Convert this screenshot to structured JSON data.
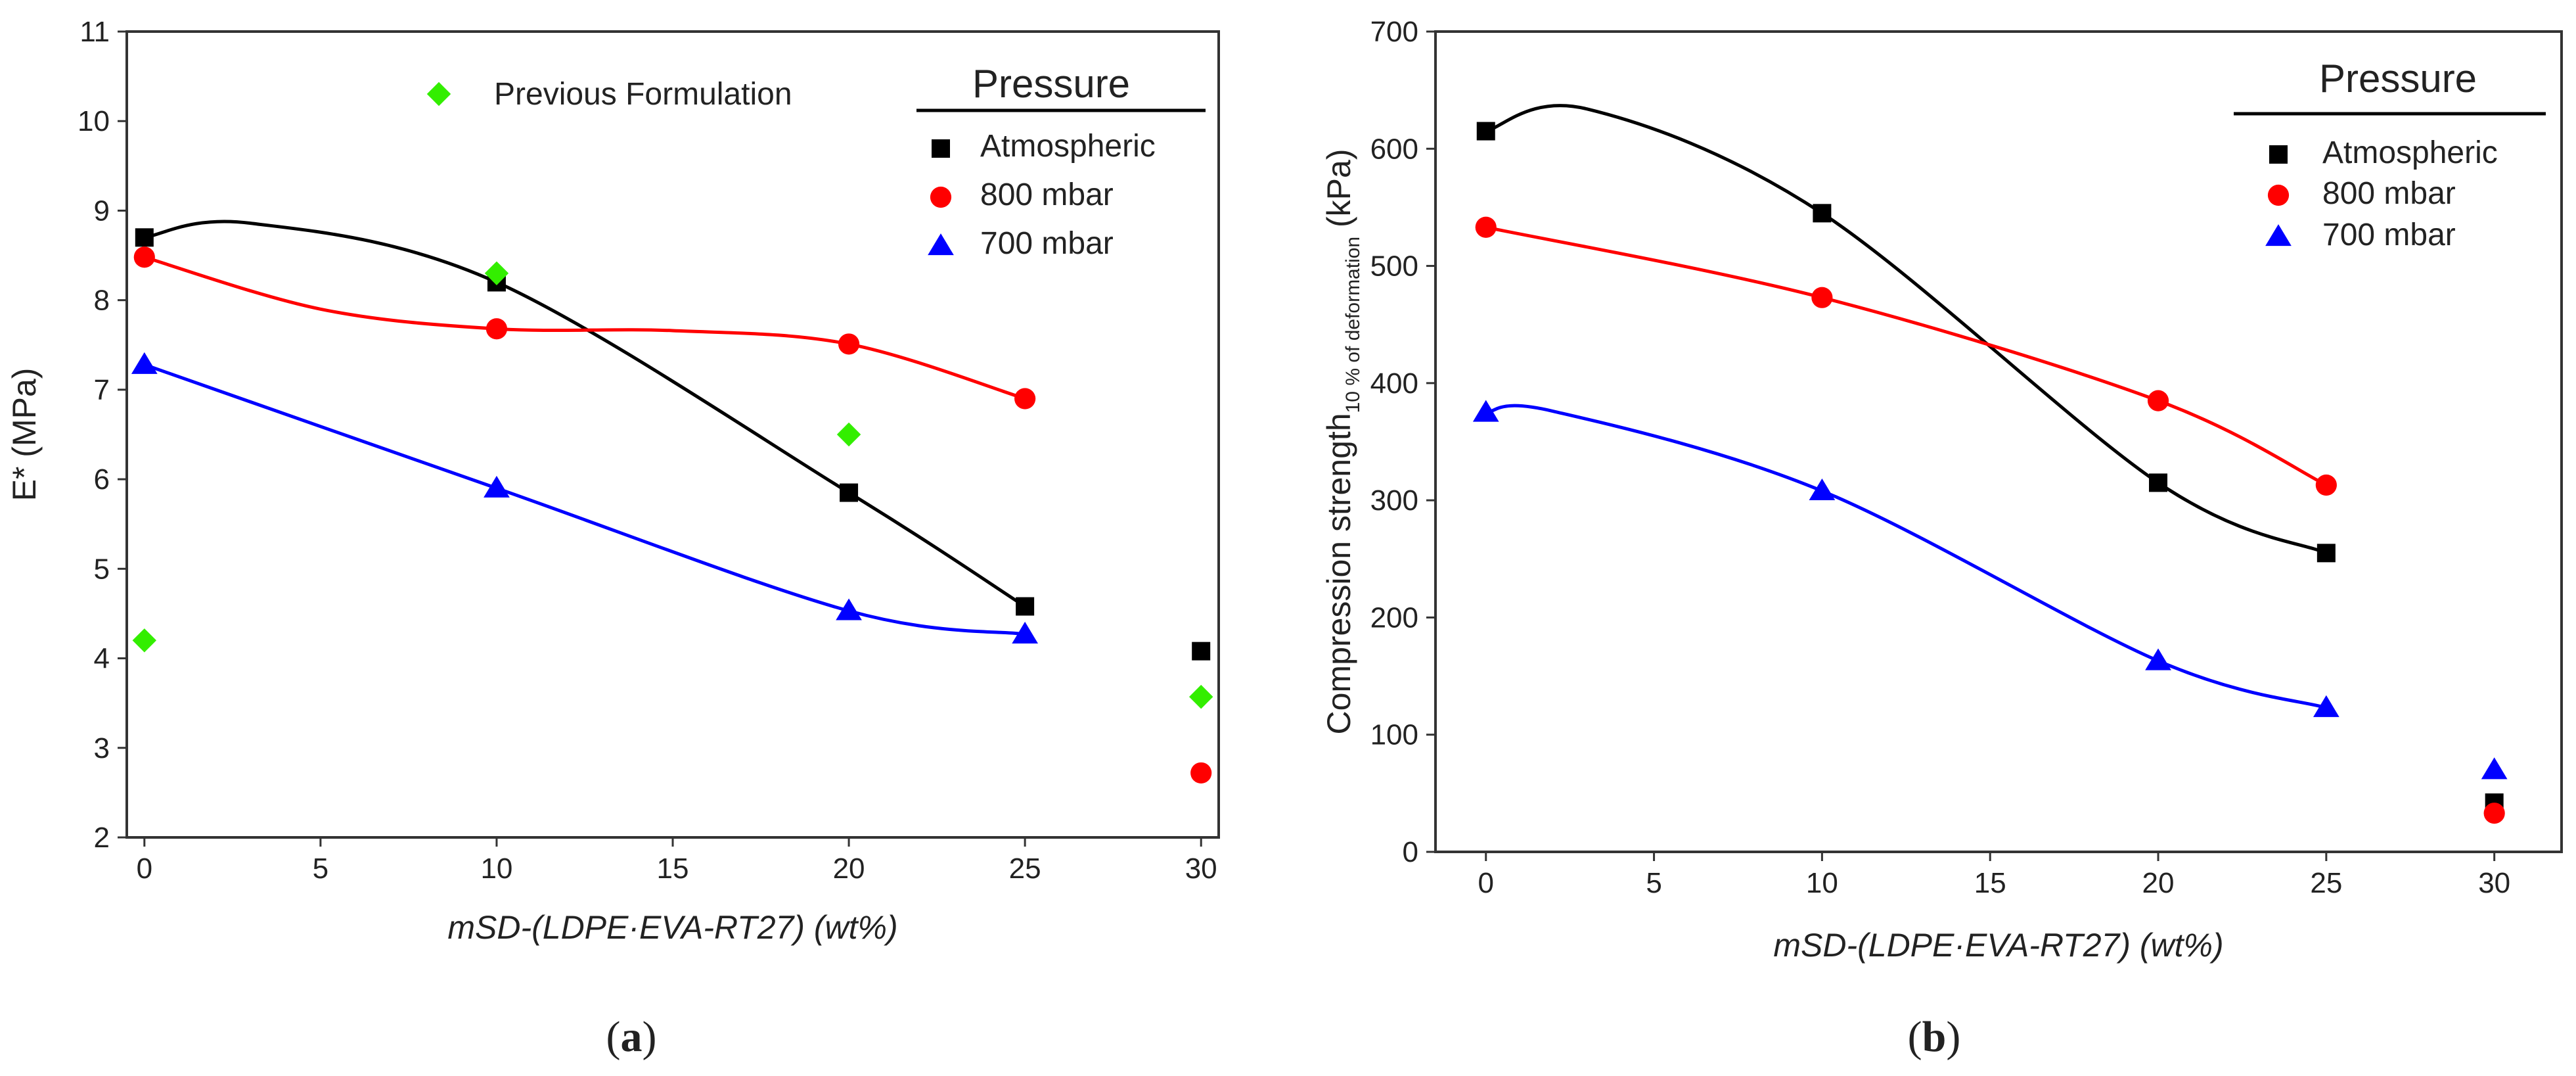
{
  "chart_data": [
    {
      "type": "scatter",
      "panel_label": {
        "open": "(",
        "letter": "a",
        "close": ")"
      },
      "title": "",
      "xlabel": "mSD-(LDPE·EVA-RT27) (wt%)",
      "ylabel": "E* (MPa)",
      "xlim": [
        -0.5,
        30.5
      ],
      "ylim": [
        2,
        11
      ],
      "xticks": [
        0,
        5,
        10,
        15,
        20,
        25,
        30
      ],
      "xtick_labels": [
        "0",
        "5",
        "10",
        "15",
        "20",
        "25",
        "30"
      ],
      "yticks": [
        2,
        3,
        4,
        5,
        6,
        7,
        8,
        9,
        10,
        11
      ],
      "ytick_labels": [
        "2",
        "3",
        "4",
        "5",
        "6",
        "7",
        "8",
        "9",
        "10",
        "11"
      ],
      "legend": {
        "title": "Pressure",
        "entries": [
          "Atmospheric",
          "800 mbar",
          "700 mbar"
        ],
        "extra_entry": "Previous Formulation"
      },
      "series": [
        {
          "name": "Atmospheric",
          "marker": "square",
          "color": "#000000",
          "x": [
            0,
            10,
            20,
            25,
            30
          ],
          "y": [
            8.7,
            8.2,
            5.85,
            4.58,
            4.08
          ],
          "fit": {
            "x": [
              0,
              3,
              10,
              20,
              25
            ],
            "y": [
              8.7,
              8.86,
              8.2,
              5.85,
              4.58
            ]
          }
        },
        {
          "name": "800 mbar",
          "marker": "circle",
          "color": "#ff0000",
          "x": [
            0,
            10,
            20,
            25,
            30
          ],
          "y": [
            8.48,
            7.68,
            7.51,
            6.9,
            2.72
          ],
          "fit": {
            "x": [
              0,
              5,
              10,
              15,
              20,
              25
            ],
            "y": [
              8.48,
              7.9,
              7.68,
              7.66,
              7.51,
              6.9
            ]
          }
        },
        {
          "name": "700 mbar",
          "marker": "triangle",
          "color": "#0000ff",
          "x": [
            0,
            10,
            20,
            25
          ],
          "y": [
            7.28,
            5.9,
            4.53,
            4.27
          ],
          "fit": {
            "x": [
              0,
              10,
              20,
              25
            ],
            "y": [
              7.28,
              5.9,
              4.53,
              4.27
            ]
          }
        },
        {
          "name": "Previous Formulation",
          "marker": "diamond",
          "color": "#33ee00",
          "x": [
            0,
            10,
            20,
            30
          ],
          "y": [
            4.2,
            8.3,
            6.5,
            3.57
          ]
        }
      ]
    },
    {
      "type": "scatter",
      "panel_label": {
        "open": "(",
        "letter": "b",
        "close": ")"
      },
      "title": "",
      "xlabel": "mSD-(LDPE·EVA-RT27) (wt%)",
      "ylabel_main": "Compression strength",
      "ylabel_sub": "10 % of deformation",
      "ylabel_unit": " (kPa)",
      "xlim": [
        -1.5,
        32
      ],
      "ylim": [
        0,
        700
      ],
      "xticks": [
        0,
        5,
        10,
        15,
        20,
        25,
        30
      ],
      "xtick_labels": [
        "0",
        "5",
        "10",
        "15",
        "20",
        "25",
        "30"
      ],
      "yticks": [
        0,
        100,
        200,
        300,
        400,
        500,
        600,
        700
      ],
      "ytick_labels": [
        "0",
        "100",
        "200",
        "300",
        "400",
        "500",
        "600",
        "700"
      ],
      "legend": {
        "title": "Pressure",
        "entries": [
          "Atmospheric",
          "800 mbar",
          "700 mbar"
        ]
      },
      "series": [
        {
          "name": "Atmospheric",
          "marker": "square",
          "color": "#000000",
          "x": [
            0,
            10,
            20,
            25,
            30
          ],
          "y": [
            615,
            545,
            315,
            255,
            42
          ],
          "fit": {
            "x": [
              0,
              3,
              10,
              20,
              25
            ],
            "y": [
              615,
              634,
              545,
              315,
              255
            ]
          }
        },
        {
          "name": "800 mbar",
          "marker": "circle",
          "color": "#ff0000",
          "x": [
            0,
            10,
            20,
            25,
            30
          ],
          "y": [
            533,
            473,
            385,
            313,
            33
          ],
          "fit": {
            "x": [
              0,
              10,
              20,
              25
            ],
            "y": [
              533,
              473,
              385,
              313
            ]
          }
        },
        {
          "name": "700 mbar",
          "marker": "triangle",
          "color": "#0000ff",
          "x": [
            0,
            10,
            20,
            25,
            30
          ],
          "y": [
            375,
            308,
            163,
            123,
            70
          ],
          "fit": {
            "x": [
              0,
              2,
              10,
              20,
              25
            ],
            "y": [
              375,
              376,
              308,
              163,
              123
            ]
          }
        }
      ]
    }
  ]
}
